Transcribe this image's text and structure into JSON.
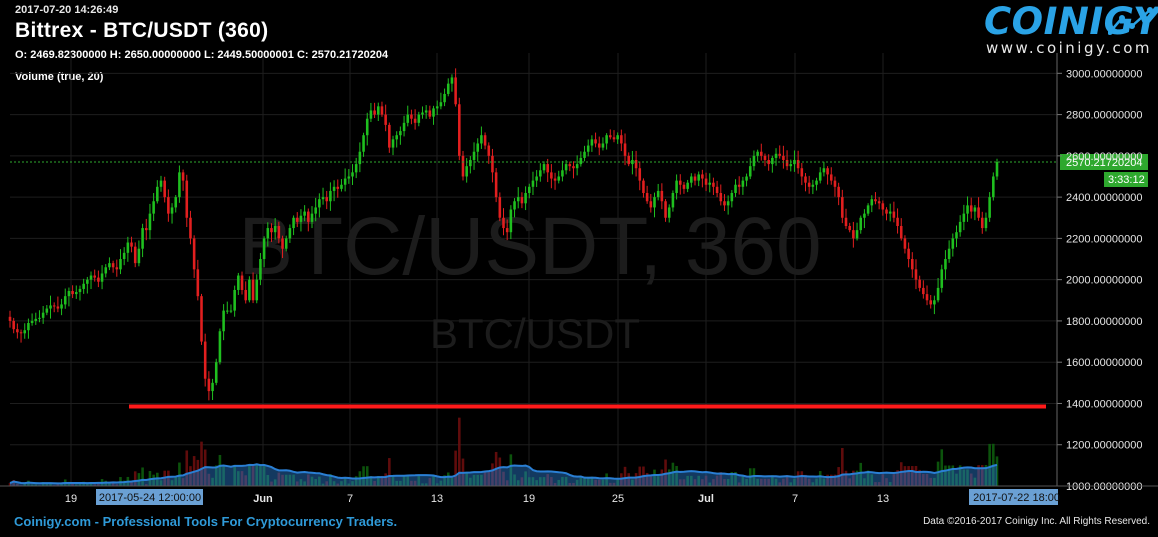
{
  "header": {
    "timestamp": "2017-07-20 14:26:49",
    "title": "Bittrex - BTC/USDT (360)",
    "ohlc": "O: 2469.82300000 H: 2650.00000000 L: 2449.50000001 C: 2570.21720204",
    "volume_label": "Volume (true, 20)"
  },
  "logo": {
    "name": "COINIGY",
    "url": "www.coinigy.com",
    "icon": "rising-line-chart-icon"
  },
  "watermark": {
    "main": "BTC/USDT, 360",
    "sub": "BTC/USDT"
  },
  "footer": {
    "left": "Coinigy.com - Professional Tools For Cryptocurrency Traders.",
    "right": "Data ©2016-2017 Coinigy Inc. All Rights Reserved."
  },
  "colors": {
    "up": "#1fbf1f",
    "down": "#e21f1f",
    "price_tag": "#2ea82e",
    "support_line": "#ff1a1a",
    "volume_ma": "#2a7fd4",
    "axis_tag": "#6aa0d4"
  },
  "chart_data": {
    "type": "candlestick",
    "y_axis": {
      "range": [
        1000,
        3050
      ],
      "ticks": [
        1000,
        1200,
        1400,
        1600,
        1800,
        2000,
        2200,
        2400,
        2600,
        2800,
        3000
      ],
      "tick_labels": [
        "1000.00000000",
        "1200.00000000",
        "1400.00000000",
        "1600.00000000",
        "1800.00000000",
        "2000.00000000",
        "2200.00000000",
        "2400.00000000",
        "2600.00000000",
        "2800.00000000",
        "3000.00000000"
      ],
      "position": "right"
    },
    "x_axis": {
      "tick_labels": [
        "19",
        "Jun",
        "7",
        "13",
        "19",
        "25",
        "Jul",
        "7",
        "13"
      ],
      "highlight_left": "2017-05-24 12:00:00",
      "highlight_right": "2017-07-22 18:00"
    },
    "last_price": {
      "value": 2570.21720204,
      "label": "2570.21720204",
      "countdown": "3:33:12"
    },
    "support_line": {
      "value": 1385
    },
    "grid": true,
    "candles_close": [
      1800,
      1760,
      1745,
      1740,
      1755,
      1790,
      1800,
      1810,
      1815,
      1840,
      1860,
      1875,
      1870,
      1860,
      1880,
      1920,
      1945,
      1930,
      1940,
      1955,
      1980,
      2000,
      2020,
      2010,
      1990,
      2030,
      2060,
      2080,
      2060,
      2050,
      2100,
      2130,
      2180,
      2160,
      2080,
      2150,
      2250,
      2240,
      2320,
      2380,
      2450,
      2480,
      2400,
      2320,
      2350,
      2400,
      2520,
      2480,
      2300,
      2200,
      2050,
      1920,
      1700,
      1520,
      1460,
      1500,
      1600,
      1750,
      1850,
      1850,
      1850,
      1950,
      2020,
      1950,
      1900,
      2000,
      1900,
      2000,
      2100,
      2200,
      2250,
      2230,
      2260,
      2200,
      2150,
      2200,
      2250,
      2300,
      2280,
      2310,
      2330,
      2280,
      2320,
      2350,
      2390,
      2400,
      2380,
      2430,
      2450,
      2440,
      2460,
      2490,
      2500,
      2520,
      2560,
      2620,
      2700,
      2780,
      2820,
      2800,
      2840,
      2800,
      2750,
      2640,
      2680,
      2700,
      2720,
      2760,
      2800,
      2780,
      2760,
      2800,
      2810,
      2820,
      2790,
      2830,
      2840,
      2860,
      2900,
      2950,
      2980,
      2850,
      2600,
      2500,
      2550,
      2580,
      2620,
      2660,
      2700,
      2650,
      2600,
      2520,
      2400,
      2300,
      2250,
      2230,
      2340,
      2380,
      2400,
      2370,
      2420,
      2450,
      2480,
      2500,
      2530,
      2560,
      2520,
      2490,
      2480,
      2500,
      2530,
      2560,
      2550,
      2540,
      2560,
      2590,
      2620,
      2650,
      2680,
      2660,
      2640,
      2660,
      2700,
      2690,
      2680,
      2700,
      2660,
      2600,
      2560,
      2580,
      2540,
      2480,
      2420,
      2380,
      2350,
      2400,
      2430,
      2380,
      2300,
      2350,
      2420,
      2480,
      2460,
      2440,
      2470,
      2500,
      2480,
      2510,
      2490,
      2460,
      2470,
      2450,
      2420,
      2380,
      2360,
      2380,
      2420,
      2460,
      2450,
      2480,
      2500,
      2550,
      2600,
      2620,
      2600,
      2580,
      2560,
      2590,
      2610,
      2600,
      2580,
      2550,
      2560,
      2580,
      2540,
      2500,
      2470,
      2450,
      2460,
      2480,
      2520,
      2540,
      2510,
      2480,
      2450,
      2400,
      2300,
      2260,
      2240,
      2200,
      2240,
      2300,
      2320,
      2360,
      2390,
      2380,
      2370,
      2340,
      2320,
      2330,
      2300,
      2260,
      2200,
      2150,
      2100,
      2050,
      2000,
      1960,
      1930,
      1900,
      1880,
      1900,
      1960,
      2050,
      2100,
      2150,
      2200,
      2230,
      2280,
      2320,
      2360,
      2330,
      2350,
      2300,
      2250,
      2300,
      2400,
      2500,
      2570
    ],
    "volume_bars": [
      0,
      0,
      0,
      0,
      0,
      0,
      0,
      0,
      0,
      0,
      0,
      0,
      0,
      0,
      0,
      0,
      0,
      0,
      0,
      0,
      0,
      0,
      0,
      0,
      0,
      0,
      0,
      0,
      0,
      0,
      0,
      0,
      0,
      0,
      0,
      0,
      0,
      0,
      0,
      0,
      0,
      0,
      0,
      0,
      0,
      0,
      0,
      0,
      0,
      0,
      0,
      0,
      20,
      25,
      15,
      8,
      0,
      0,
      0,
      0,
      0,
      0,
      0,
      0,
      0,
      0,
      0,
      0,
      0,
      0,
      0,
      0,
      0,
      0,
      0,
      0,
      0,
      0,
      0,
      0,
      0,
      0,
      0,
      0,
      0,
      0,
      0,
      0,
      0,
      0,
      0,
      0,
      0,
      0,
      0,
      0,
      0,
      0,
      0,
      0,
      0,
      0,
      0,
      0,
      0,
      0,
      0,
      0,
      0,
      0,
      0,
      0,
      0,
      0,
      0,
      0,
      0,
      0,
      0,
      0,
      0,
      20,
      25,
      15,
      8,
      0,
      0,
      0,
      0,
      0,
      0,
      0,
      0,
      0,
      0,
      0,
      0,
      0,
      0,
      0,
      0,
      0,
      0,
      0,
      0,
      0,
      0,
      0,
      0,
      0,
      0,
      0,
      0,
      0,
      0,
      0,
      0,
      0,
      0,
      0,
      0,
      0,
      0,
      0,
      0,
      0,
      0,
      0,
      0,
      0,
      0,
      0,
      0,
      0,
      0,
      0,
      0,
      0,
      0,
      0,
      0,
      0,
      0,
      0,
      0,
      0,
      0,
      0,
      0,
      0,
      0,
      0,
      0,
      0,
      0,
      0,
      0,
      0,
      0,
      0,
      0,
      0,
      0,
      0,
      0,
      0,
      0,
      0,
      0,
      0,
      0,
      0,
      0,
      0,
      0,
      0,
      0,
      0,
      0,
      0,
      0,
      0,
      0,
      0,
      0,
      0,
      0,
      0,
      0,
      0,
      0,
      0,
      0,
      0,
      0,
      0,
      0,
      0,
      0,
      0,
      0,
      0,
      0,
      0,
      0,
      0,
      0,
      0,
      0,
      0,
      0,
      0,
      0,
      0,
      0,
      0,
      0,
      0,
      0,
      0,
      0,
      0,
      0,
      0,
      0
    ]
  }
}
